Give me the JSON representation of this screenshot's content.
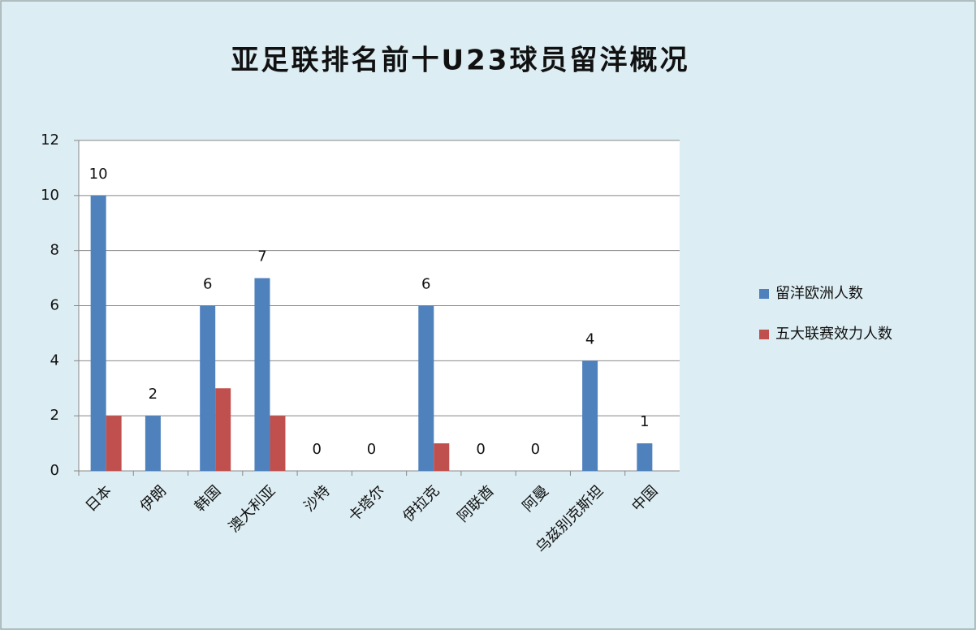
{
  "chart_data": {
    "type": "bar",
    "title": "亚足联排名前十U23球员留洋概况",
    "categories": [
      "日本",
      "伊朗",
      "韩国",
      "澳大利亚",
      "沙特",
      "卡塔尔",
      "伊拉克",
      "阿联酋",
      "阿曼",
      "乌兹别克斯坦",
      "中国"
    ],
    "series": [
      {
        "name": "留洋欧洲人数",
        "color": "#4f81bd",
        "values": [
          10,
          2,
          6,
          7,
          0,
          0,
          6,
          0,
          0,
          4,
          1
        ],
        "data_labels": true
      },
      {
        "name": "五大联赛效力人数",
        "color": "#c0504d",
        "values": [
          2,
          0,
          3,
          2,
          0,
          0,
          1,
          0,
          0,
          0,
          0
        ],
        "data_labels": false
      }
    ],
    "ylim": [
      0,
      12
    ],
    "yticks": [
      0,
      2,
      4,
      6,
      8,
      10,
      12
    ],
    "grid": true,
    "legend": "right"
  }
}
